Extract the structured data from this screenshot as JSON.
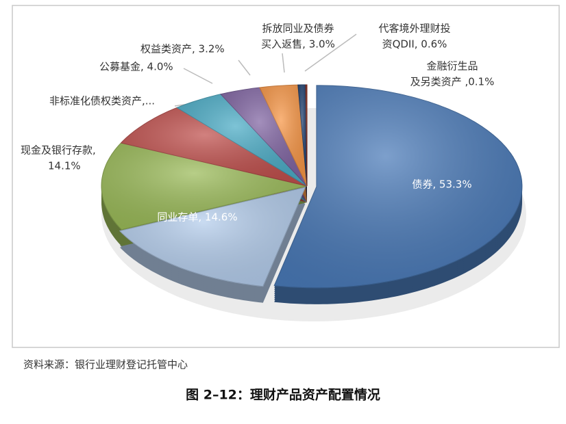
{
  "chart_data": {
    "type": "pie",
    "labels": [
      [
        "债券, 53.3%"
      ],
      [
        "同业存单, 14.6%"
      ],
      [
        "现金及银行存款,",
        "14.1%"
      ],
      [
        "非标准化债权类资产,..."
      ],
      [
        "公募基金, 4.0%"
      ],
      [
        "权益类资产, 3.2%"
      ],
      [
        "拆放同业及债券",
        "买入返售, 3.0%"
      ],
      [
        "代客境外理财投",
        "资QDII, 0.6%"
      ],
      [
        "金融衍生品",
        "及另类资产 ,0.1%"
      ]
    ],
    "values": [
      53.3,
      14.6,
      14.1,
      7.1,
      4.0,
      3.2,
      3.0,
      0.6,
      0.1
    ],
    "colors": [
      "#4a7ab8",
      "#b4cdec",
      "#9bbb59",
      "#c0504d",
      "#4bacc6",
      "#8064a2",
      "#f79646",
      "#1f3f6e",
      "#8b2a1a"
    ],
    "source": "资料来源：银行业理财登记托管中心",
    "caption": "图 2–12：理财产品资产配置情况"
  }
}
